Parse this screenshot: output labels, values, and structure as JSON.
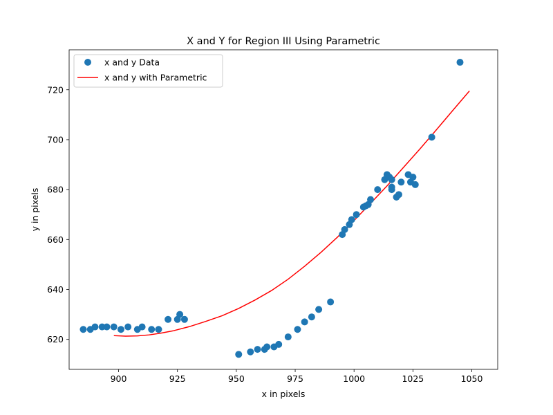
{
  "chart_data": {
    "type": "scatter",
    "title": "X and Y for Region III Using Parametric",
    "xlabel": "x in pixels",
    "ylabel": "y in pixels",
    "xlim": [
      879,
      1061
    ],
    "ylim": [
      608,
      736
    ],
    "xticks": [
      900,
      925,
      950,
      975,
      1000,
      1025,
      1050
    ],
    "yticks": [
      620,
      640,
      660,
      680,
      700,
      720
    ],
    "grid": false,
    "legend_position": "top-left",
    "colors": {
      "points": "#1f77b4",
      "curve": "#ff0000"
    },
    "series": [
      {
        "name": "x and y Data",
        "type": "scatter",
        "x": [
          885,
          888,
          890,
          893,
          895,
          898,
          901,
          904,
          908,
          910,
          914,
          917,
          921,
          925,
          926,
          928,
          951,
          956,
          959,
          962,
          963,
          966,
          968,
          972,
          976,
          979,
          982,
          985,
          990,
          995,
          996,
          998,
          999,
          1001,
          1004,
          1005,
          1006,
          1007,
          1010,
          1013,
          1014,
          1015,
          1016,
          1016,
          1016,
          1018,
          1019,
          1020,
          1023,
          1024,
          1025,
          1026,
          1033,
          1045
        ],
        "y": [
          624,
          624,
          625,
          625,
          625,
          625,
          624,
          625,
          624,
          625,
          624,
          624,
          628,
          628,
          630,
          628,
          614,
          615,
          616,
          616,
          617,
          617,
          618,
          621,
          624,
          627,
          629,
          632,
          635,
          662,
          664,
          666,
          668,
          670,
          673,
          673.5,
          674,
          676,
          680,
          684,
          686,
          685,
          684,
          681,
          680,
          677,
          678,
          683,
          686,
          683,
          685,
          682,
          701,
          731
        ]
      },
      {
        "name": "x and y with Parametric",
        "type": "line",
        "x": [
          898,
          903,
          908,
          913,
          918,
          923,
          930,
          937,
          944,
          951,
          958,
          965,
          972,
          979,
          986,
          993,
          1000,
          1007,
          1014,
          1021,
          1028,
          1035,
          1042,
          1049
        ],
        "y": [
          621.5,
          621.3,
          621.4,
          621.8,
          622.5,
          623.4,
          625.1,
          627.2,
          629.5,
          632.4,
          635.8,
          639.6,
          644.1,
          649.3,
          654.9,
          661.0,
          667.6,
          674.5,
          681.5,
          688.9,
          696.3,
          704.0,
          711.8,
          719.5
        ]
      }
    ]
  }
}
